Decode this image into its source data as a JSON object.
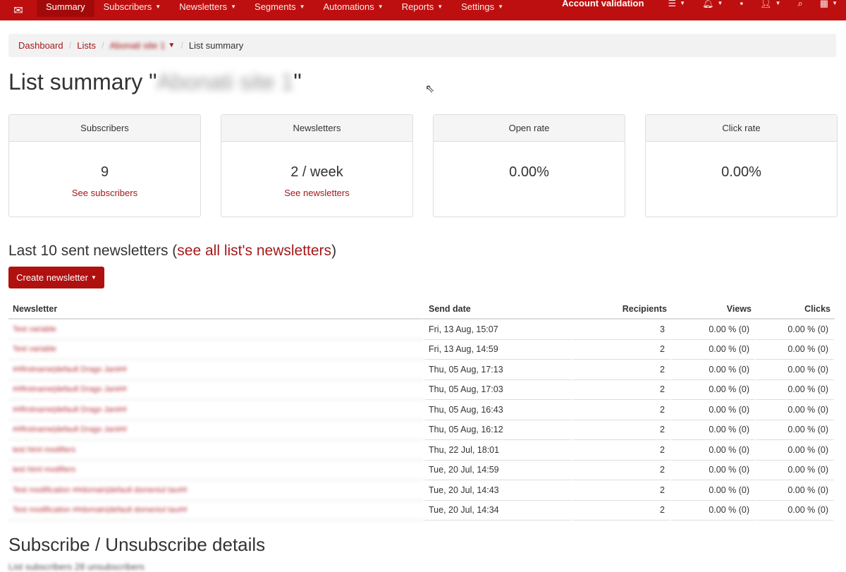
{
  "nav": {
    "items": [
      {
        "label": "Summary",
        "active": true
      },
      {
        "label": "Subscribers"
      },
      {
        "label": "Newsletters"
      },
      {
        "label": "Segments"
      },
      {
        "label": "Automations"
      },
      {
        "label": "Reports"
      },
      {
        "label": "Settings"
      }
    ],
    "account": "Account validation",
    "icons": [
      "list-icon",
      "bell-icon",
      "chat-icon",
      "user-icon",
      "search-icon",
      "uk-flag-icon"
    ]
  },
  "breadcrumb": {
    "dashboard": "Dashboard",
    "lists": "Lists",
    "list": "Abonati site 1",
    "current": "List summary"
  },
  "title": {
    "prefix": "List summary \"",
    "name": "Abonati site 1",
    "suffix": "\""
  },
  "cards": [
    {
      "header": "Subscribers",
      "value": "9",
      "link": "See subscribers"
    },
    {
      "header": "Newsletters",
      "value": "2 / week",
      "link": "See newsletters"
    },
    {
      "header": "Open rate",
      "value": "0.00%"
    },
    {
      "header": "Click rate",
      "value": "0.00%"
    }
  ],
  "section": {
    "title": "Last 10 sent newsletters (",
    "link": "see all list's newsletters",
    "close": ")",
    "create": "Create newsletter"
  },
  "table": {
    "headers": [
      "Newsletter",
      "Send date",
      "Recipients",
      "Views",
      "Clicks"
    ],
    "rows": [
      [
        "Test variable",
        "Fri, 13 Aug, 15:07",
        "3",
        "0.00 % (0)",
        "0.00 % (0)"
      ],
      [
        "Test variable",
        "Fri, 13 Aug, 14:59",
        "2",
        "0.00 % (0)",
        "0.00 % (0)"
      ],
      [
        "##firstname|default Drago Jani##",
        "Thu, 05 Aug, 17:13",
        "2",
        "0.00 % (0)",
        "0.00 % (0)"
      ],
      [
        "##firstname|default Drago Jani##",
        "Thu, 05 Aug, 17:03",
        "2",
        "0.00 % (0)",
        "0.00 % (0)"
      ],
      [
        "##firstname|default Drago Jani##",
        "Thu, 05 Aug, 16:43",
        "2",
        "0.00 % (0)",
        "0.00 % (0)"
      ],
      [
        "##firstname|default Drago Jani##",
        "Thu, 05 Aug, 16:12",
        "2",
        "0.00 % (0)",
        "0.00 % (0)"
      ],
      [
        "test html modifiers",
        "Thu, 22 Jul, 18:01",
        "2",
        "0.00 % (0)",
        "0.00 % (0)"
      ],
      [
        "test html modifiers",
        "Tue, 20 Jul, 14:59",
        "2",
        "0.00 % (0)",
        "0.00 % (0)"
      ],
      [
        "Test modification ##domain|default domeniul tau##",
        "Tue, 20 Jul, 14:43",
        "2",
        "0.00 % (0)",
        "0.00 % (0)"
      ],
      [
        "Test modification ##domain|default domeniul tau##",
        "Tue, 20 Jul, 14:34",
        "2",
        "0.00 % (0)",
        "0.00 % (0)"
      ]
    ]
  },
  "details": {
    "title": "Subscribe / Unsubscribe details",
    "sub": "List subscribers 28 unsubscribers"
  }
}
